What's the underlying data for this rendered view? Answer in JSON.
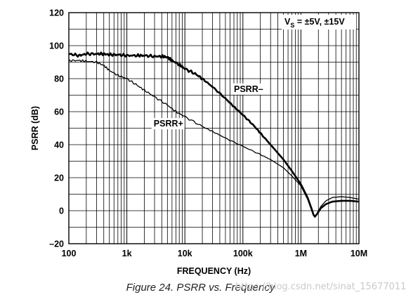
{
  "chart_data": {
    "type": "line",
    "title": "",
    "xlabel": "FREQUENCY (Hz)",
    "ylabel": "PSRR (dB)",
    "x_scale": "log",
    "xlim": [
      100,
      10000000
    ],
    "ylim": [
      -20,
      120
    ],
    "grid": true,
    "x_tick_labels": [
      {
        "value": 100,
        "label": "100"
      },
      {
        "value": 1000,
        "label": "1k"
      },
      {
        "value": 10000,
        "label": "10k"
      },
      {
        "value": 100000,
        "label": "100k"
      },
      {
        "value": 1000000,
        "label": "1M"
      },
      {
        "value": 10000000,
        "label": "10M"
      }
    ],
    "y_tick_labels": [
      {
        "value": 120,
        "label": "120"
      },
      {
        "value": 100,
        "label": "100"
      },
      {
        "value": 80,
        "label": "80"
      },
      {
        "value": 60,
        "label": "60"
      },
      {
        "value": 40,
        "label": "40"
      },
      {
        "value": 20,
        "label": "20"
      },
      {
        "value": 0,
        "label": "0"
      },
      {
        "value": -20,
        "label": "–20"
      }
    ],
    "annotation": {
      "prefix": "V",
      "subscript": "S",
      "suffix": " = ±5V, ±15V"
    },
    "series": [
      {
        "name": "PSRR–",
        "color": "#000000",
        "line_style": "thick",
        "label_at": {
          "x": 70000,
          "y": 72
        },
        "points": [
          [
            100,
            95
          ],
          [
            150,
            94
          ],
          [
            200,
            95
          ],
          [
            300,
            95
          ],
          [
            400,
            95
          ],
          [
            500,
            94.5
          ],
          [
            700,
            94.5
          ],
          [
            1000,
            94
          ],
          [
            1500,
            94
          ],
          [
            2000,
            94
          ],
          [
            3000,
            93.5
          ],
          [
            4000,
            93.5
          ],
          [
            5000,
            93
          ],
          [
            6000,
            91
          ],
          [
            8000,
            88.5
          ],
          [
            10000,
            86
          ],
          [
            15000,
            83
          ],
          [
            20000,
            80
          ],
          [
            30000,
            75
          ],
          [
            50000,
            68
          ],
          [
            70000,
            63
          ],
          [
            100000,
            58
          ],
          [
            150000,
            52
          ],
          [
            200000,
            47
          ],
          [
            300000,
            40
          ],
          [
            500000,
            31
          ],
          [
            700000,
            24
          ],
          [
            1000000,
            16
          ],
          [
            1300000,
            8
          ],
          [
            1500000,
            2
          ],
          [
            1650000,
            -2.5
          ],
          [
            1750000,
            -3.5
          ],
          [
            1900000,
            -2
          ],
          [
            2200000,
            1.5
          ],
          [
            2700000,
            4
          ],
          [
            3500000,
            5.5
          ],
          [
            5000000,
            6
          ],
          [
            7000000,
            6
          ],
          [
            10000000,
            5.5
          ]
        ]
      },
      {
        "name": "PSRR+",
        "color": "#000000",
        "line_style": "thin",
        "label_at": {
          "x": 2900,
          "y": 51
        },
        "points": [
          [
            100,
            91
          ],
          [
            150,
            91
          ],
          [
            200,
            90.5
          ],
          [
            300,
            90
          ],
          [
            400,
            88
          ],
          [
            500,
            85
          ],
          [
            700,
            82
          ],
          [
            1000,
            80
          ],
          [
            1500,
            76
          ],
          [
            2000,
            73
          ],
          [
            3000,
            69
          ],
          [
            5000,
            64
          ],
          [
            7000,
            60
          ],
          [
            10000,
            57
          ],
          [
            20000,
            51
          ],
          [
            30000,
            48
          ],
          [
            50000,
            44
          ],
          [
            100000,
            39
          ],
          [
            200000,
            34
          ],
          [
            300000,
            31
          ],
          [
            500000,
            26
          ],
          [
            700000,
            21
          ],
          [
            1000000,
            15
          ],
          [
            1300000,
            7
          ],
          [
            1500000,
            1
          ],
          [
            1650000,
            -3
          ],
          [
            1750000,
            -4
          ],
          [
            1900000,
            -1.5
          ],
          [
            2200000,
            2.5
          ],
          [
            2700000,
            6
          ],
          [
            3500000,
            8
          ],
          [
            5000000,
            8.5
          ],
          [
            7000000,
            8
          ],
          [
            10000000,
            7
          ]
        ]
      }
    ]
  },
  "caption": "Figure 24. PSRR vs. Frequency",
  "watermark": "https://blog.csdn.net/sinat_15677011"
}
